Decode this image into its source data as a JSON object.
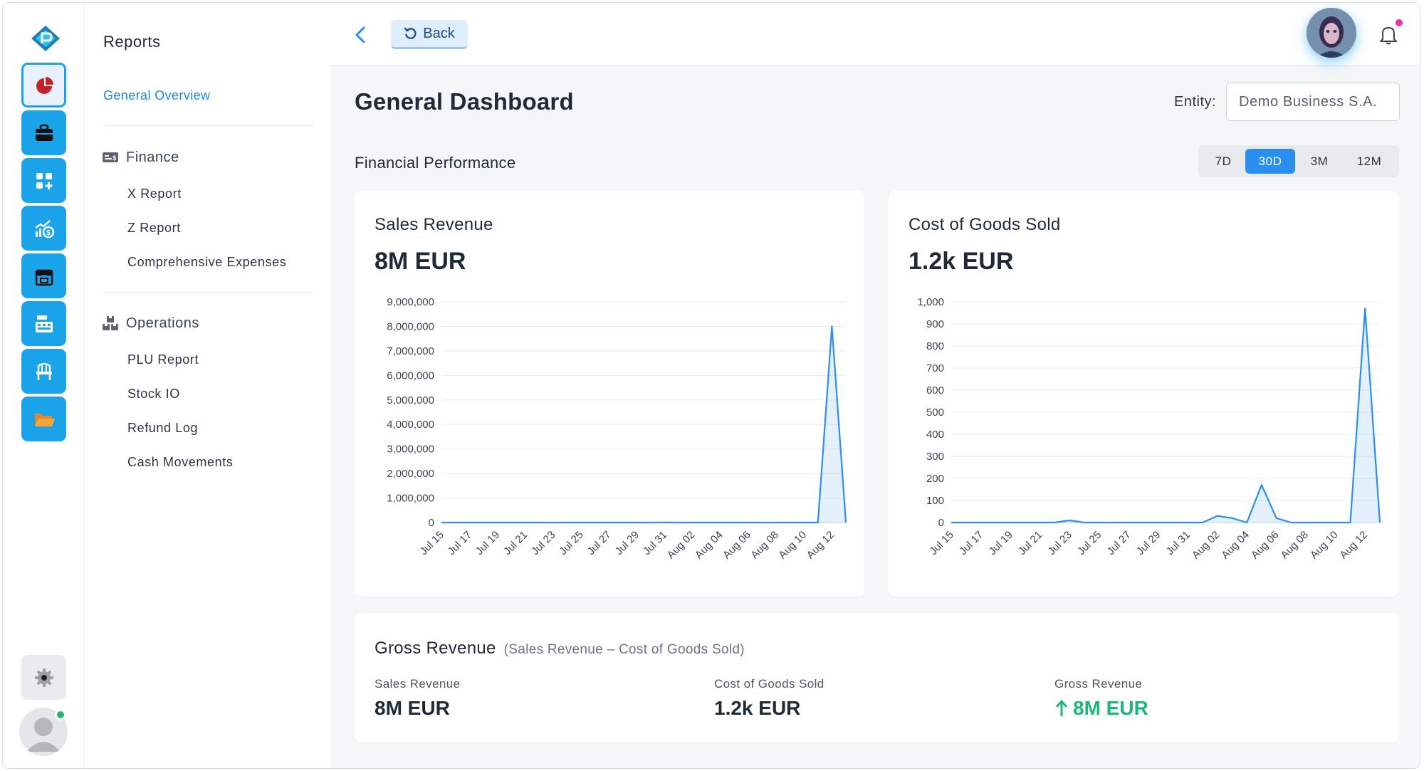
{
  "sidebar": {
    "title": "Reports",
    "general_overview": "General Overview",
    "sections": [
      {
        "label": "Finance",
        "items": [
          "X Report",
          "Z Report",
          "Comprehensive Expenses"
        ]
      },
      {
        "label": "Operations",
        "items": [
          "PLU Report",
          "Stock IO",
          "Refund Log",
          "Cash Movements"
        ]
      }
    ]
  },
  "rail": {
    "icons": [
      "pie-chart-icon",
      "briefcase-icon",
      "add-widget-icon",
      "growth-money-icon",
      "store-icon",
      "cash-register-icon",
      "chair-icon",
      "folder-icon",
      "settings-icon",
      "user-avatar"
    ],
    "accent": "#1aa3e8"
  },
  "topbar": {
    "back_label": "Back"
  },
  "page": {
    "title": "General Dashboard",
    "entity_label": "Entity:",
    "entity_value": "Demo Business S.A.",
    "section_title": "Financial Performance",
    "ranges": [
      "7D",
      "30D",
      "3M",
      "12M"
    ],
    "selected_range": "30D"
  },
  "cards": {
    "sales": {
      "title": "Sales Revenue",
      "value": "8M EUR"
    },
    "cogs": {
      "title": "Cost of Goods Sold",
      "value": "1.2k EUR"
    }
  },
  "gross": {
    "title": "Gross Revenue",
    "subtitle": "(Sales Revenue – Cost of Goods Sold)",
    "metrics": [
      {
        "label": "Sales Revenue",
        "value": "8M EUR"
      },
      {
        "label": "Cost of Goods Sold",
        "value": "1.2k EUR"
      },
      {
        "label": "Gross Revenue",
        "value": "8M EUR",
        "trend": "up"
      }
    ]
  },
  "chart_data": [
    {
      "type": "area",
      "title": "Sales Revenue",
      "color": "#2b8ff0",
      "x_tick_labels": [
        "Jul 15",
        "Jul 17",
        "Jul 19",
        "Jul 21",
        "Jul 23",
        "Jul 25",
        "Jul 27",
        "Jul 29",
        "Jul 31",
        "Aug 02",
        "Aug 04",
        "Aug 06",
        "Aug 08",
        "Aug 10",
        "Aug 12"
      ],
      "y_tick_labels": [
        "0",
        "1,000,000",
        "2,000,000",
        "3,000,000",
        "4,000,000",
        "5,000,000",
        "6,000,000",
        "7,000,000",
        "8,000,000",
        "9,000,000"
      ],
      "ylim": [
        0,
        9000000
      ],
      "x": [
        "Jul 15",
        "Jul 16",
        "Jul 17",
        "Jul 18",
        "Jul 19",
        "Jul 20",
        "Jul 21",
        "Jul 22",
        "Jul 23",
        "Jul 24",
        "Jul 25",
        "Jul 26",
        "Jul 27",
        "Jul 28",
        "Jul 29",
        "Jul 30",
        "Jul 31",
        "Aug 01",
        "Aug 02",
        "Aug 03",
        "Aug 04",
        "Aug 05",
        "Aug 06",
        "Aug 07",
        "Aug 08",
        "Aug 09",
        "Aug 10",
        "Aug 11",
        "Aug 12",
        "Aug 13"
      ],
      "values": [
        0,
        0,
        0,
        0,
        0,
        0,
        0,
        0,
        0,
        0,
        0,
        0,
        0,
        0,
        0,
        0,
        5000,
        0,
        0,
        0,
        0,
        0,
        0,
        0,
        0,
        0,
        0,
        0,
        8000000,
        0
      ]
    },
    {
      "type": "area",
      "title": "Cost of Goods Sold",
      "color": "#2b8ff0",
      "x_tick_labels": [
        "Jul 15",
        "Jul 17",
        "Jul 19",
        "Jul 21",
        "Jul 23",
        "Jul 25",
        "Jul 27",
        "Jul 29",
        "Jul 31",
        "Aug 02",
        "Aug 04",
        "Aug 06",
        "Aug 08",
        "Aug 10",
        "Aug 12"
      ],
      "y_tick_labels": [
        "0",
        "100",
        "200",
        "300",
        "400",
        "500",
        "600",
        "700",
        "800",
        "900",
        "1,000"
      ],
      "ylim": [
        0,
        1000
      ],
      "x": [
        "Jul 15",
        "Jul 16",
        "Jul 17",
        "Jul 18",
        "Jul 19",
        "Jul 20",
        "Jul 21",
        "Jul 22",
        "Jul 23",
        "Jul 24",
        "Jul 25",
        "Jul 26",
        "Jul 27",
        "Jul 28",
        "Jul 29",
        "Jul 30",
        "Jul 31",
        "Aug 01",
        "Aug 02",
        "Aug 03",
        "Aug 04",
        "Aug 05",
        "Aug 06",
        "Aug 07",
        "Aug 08",
        "Aug 09",
        "Aug 10",
        "Aug 11",
        "Aug 12",
        "Aug 13"
      ],
      "values": [
        0,
        0,
        0,
        0,
        0,
        0,
        0,
        0,
        10,
        0,
        0,
        0,
        0,
        0,
        0,
        0,
        0,
        0,
        30,
        20,
        0,
        170,
        20,
        0,
        0,
        0,
        0,
        0,
        970,
        0
      ]
    }
  ]
}
